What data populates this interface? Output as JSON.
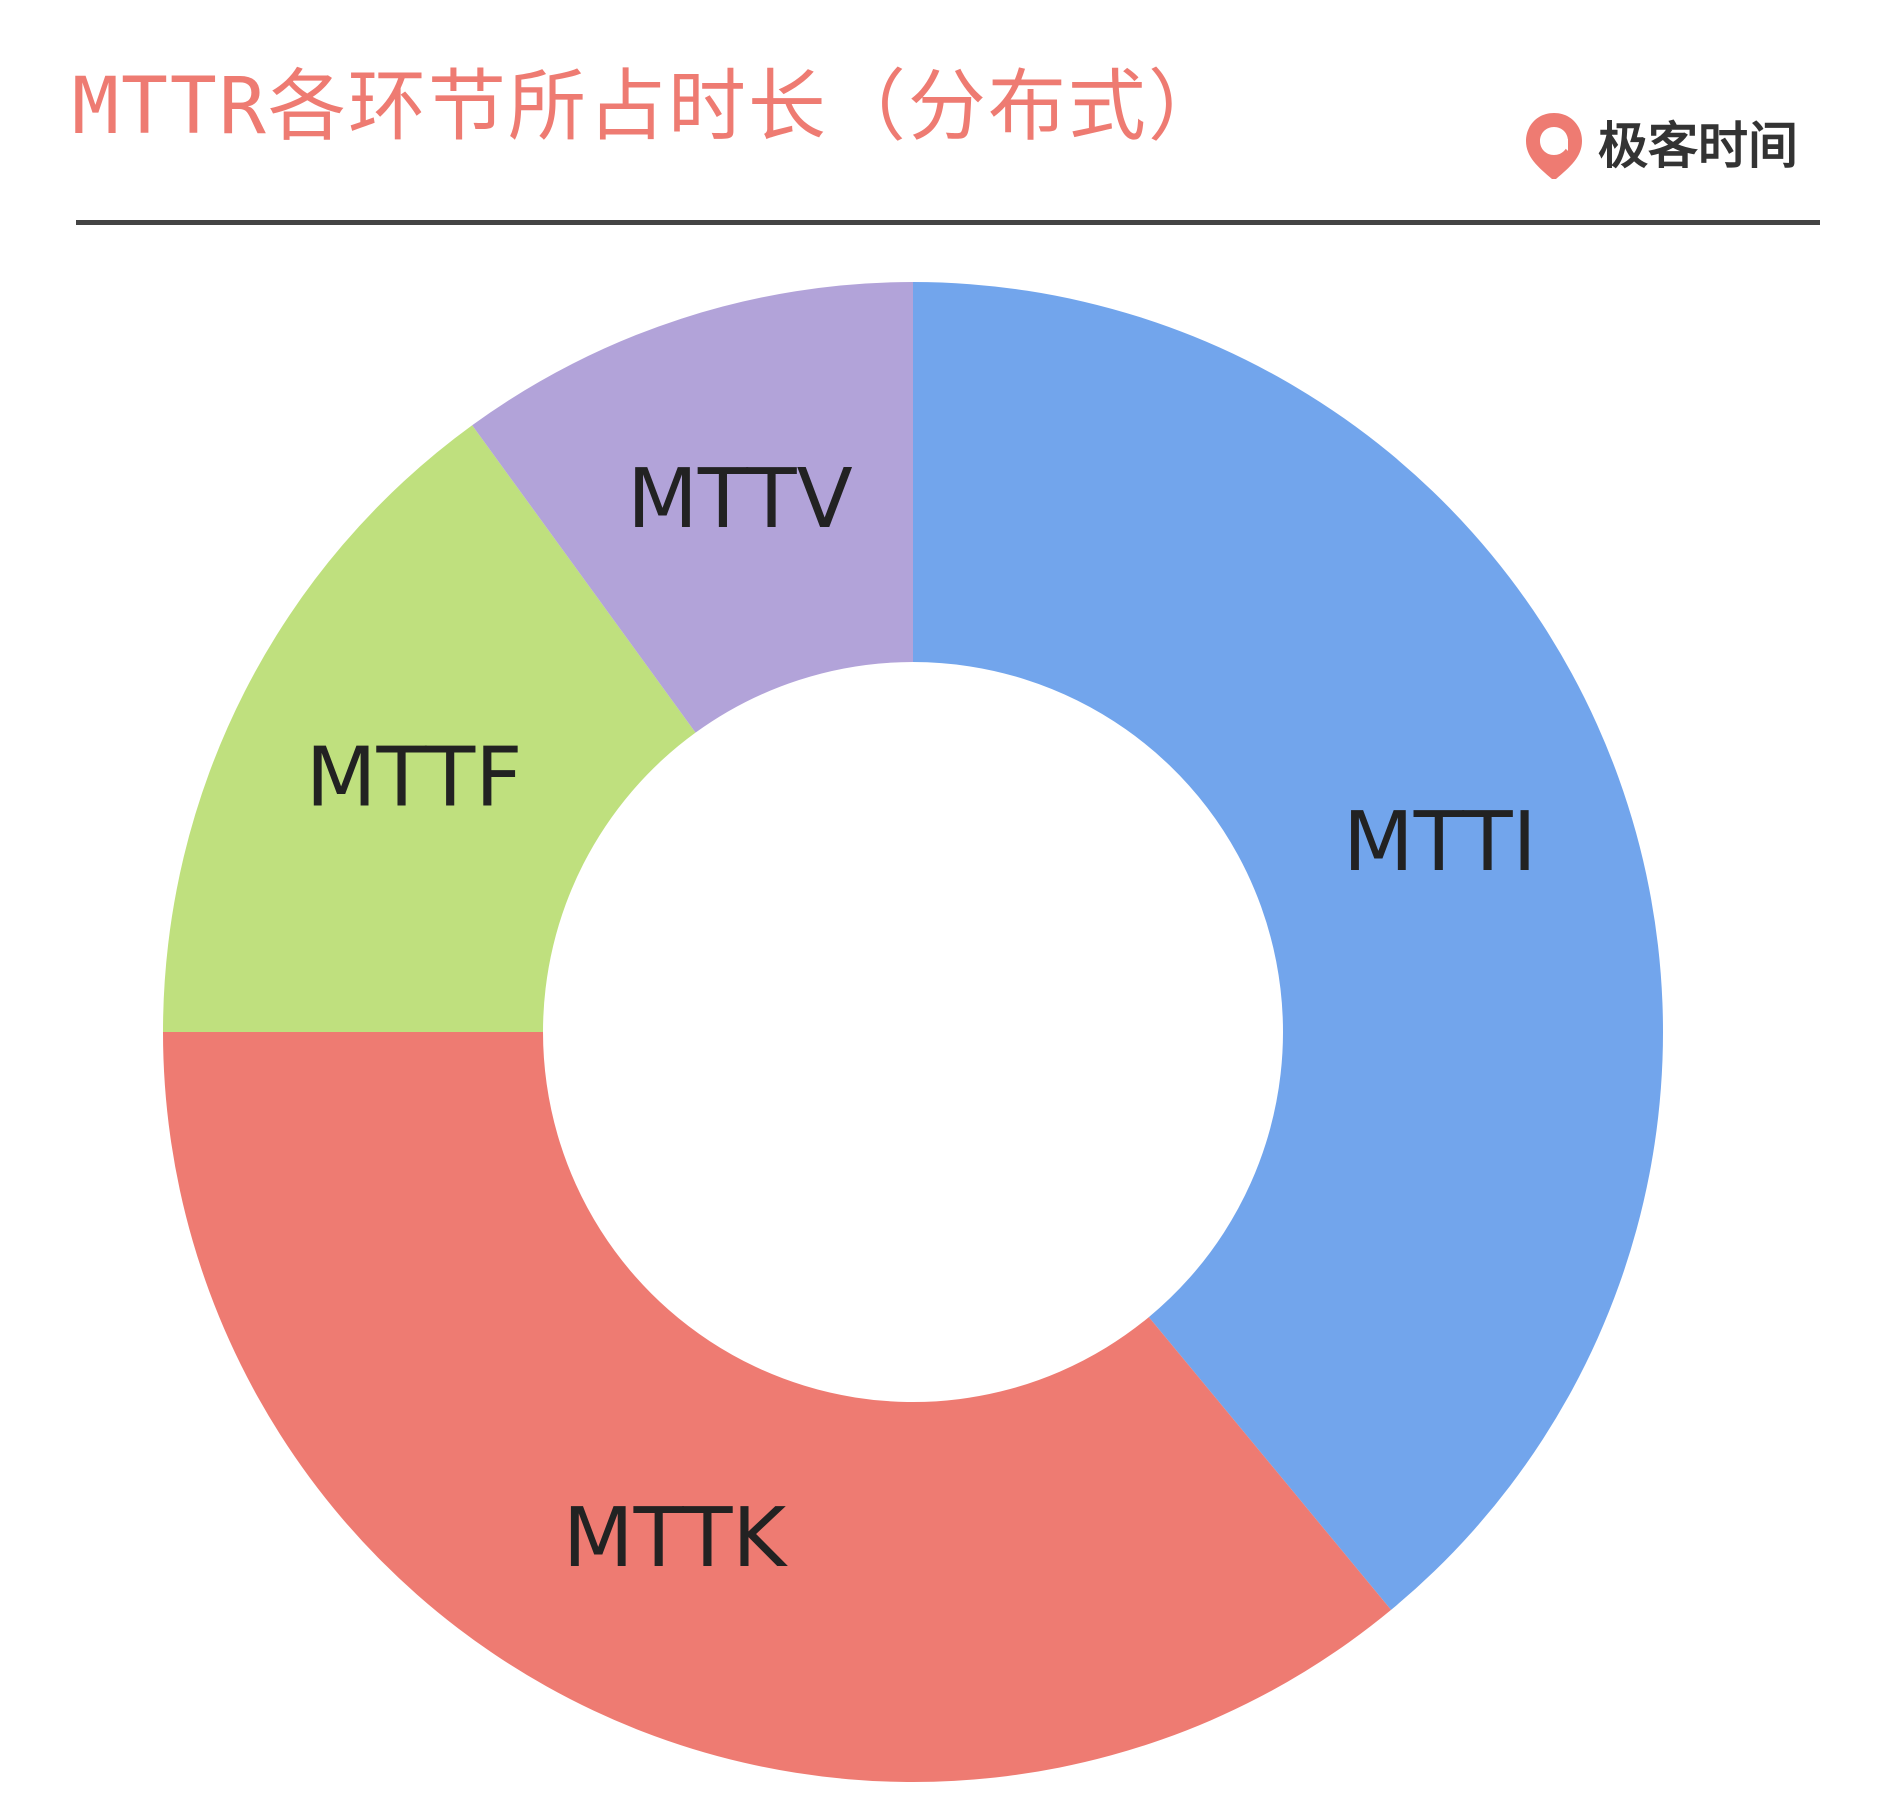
{
  "header": {
    "title": "MTTR各环节所占时长（分布式）",
    "title_color": "#ee7b72",
    "brand_name": "极客时间",
    "brand_color": "#ee7b72"
  },
  "chart_data": {
    "type": "pie",
    "variant": "donut",
    "title": "MTTR各环节所占时长（分布式）",
    "start": "top, clockwise",
    "legend": "none",
    "slices": [
      {
        "label": "MTTI",
        "value": 39,
        "color": "#72a5ec"
      },
      {
        "label": "MTTK",
        "value": 36,
        "color": "#ee7b72"
      },
      {
        "label": "MTTF",
        "value": 15,
        "color": "#bfe07e"
      },
      {
        "label": "MTTV",
        "value": 10,
        "color": "#b2a3d9"
      }
    ]
  }
}
